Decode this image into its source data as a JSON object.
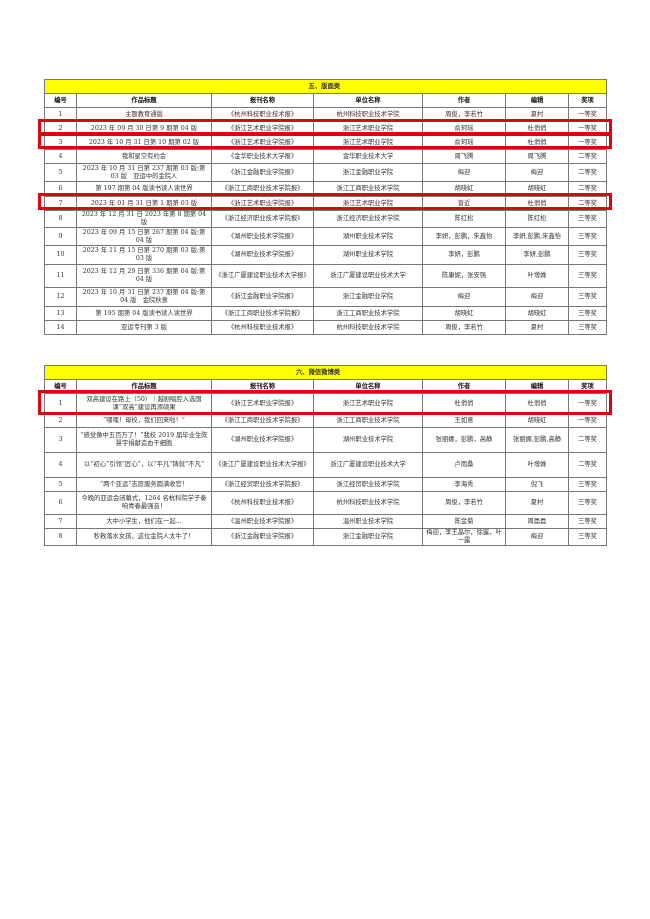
{
  "headers": [
    "编号",
    "作品标题",
    "报刊名称",
    "单位名称",
    "作者",
    "编辑",
    "奖项"
  ],
  "tables": [
    {
      "title": "五、版面类",
      "rows": [
        [
          "1",
          "主题教育通版",
          "《杭州科技职业技术报》",
          "杭州科技职业技术学院",
          "周俊，李若竹",
          "夏村",
          "一等奖"
        ],
        [
          "2",
          "2023 年 09 月 30 日第 9 期第 04 版",
          "《浙江艺术职业学院报》",
          "浙江艺术职业学院",
          "俞珂瑶",
          "杜俏俏",
          "一等奖"
        ],
        [
          "3",
          "2023 年 10 月 31 日第 10 期第 02 版",
          "《浙江艺术职业学院报》",
          "浙江艺术职业学院",
          "俞珂瑶",
          "杜俏俏",
          "一等奖"
        ],
        [
          "4",
          "我和星空有约会",
          "《金华职业技术大学报》",
          "金华职业技术大学",
          "周飞腾",
          "周飞腾",
          "二等奖"
        ],
        [
          "5",
          "2023 年 10 月 31 日第 237 期第 03 版:第 03 版　亚运中的金院人",
          "《浙江金融职业学院报》",
          "浙江金融职业学院",
          "梅迎",
          "梅迎",
          "二等奖"
        ],
        [
          "6",
          "第 197 期第 04 版读书读人读世界",
          "《浙江工商职业技术学院报》",
          "浙江工商职业技术学院",
          "胡晓虹",
          "胡晓虹",
          "二等奖"
        ],
        [
          "7",
          "2023 年 01 月 31 日第 1 期第 03 版",
          "《浙江艺术职业学院报》",
          "浙江艺术职业学院",
          "曾近",
          "杜俏俏",
          "二等奖"
        ],
        [
          "8",
          "2023 年 12 月 31 日 2023 年第 8 期第 04 版",
          "《浙江经济职业技术学院报》",
          "浙江经济职业技术学院",
          "陈红松",
          "陈红松",
          "三等奖"
        ],
        [
          "9",
          "2023 年 09 月 15 日第 267 期第 04 版:第 04 版",
          "《湖州职业技术学院报》",
          "湖州职业技术学院",
          "李妍，彭鹏，朱鑫怡",
          "李妍,彭鹏,朱鑫怡",
          "三等奖"
        ],
        [
          "10",
          "2023 年 11 月 15 日第 270 期第 03 版:第 03 版",
          "《湖州职业技术学院报》",
          "湖州职业技术学院",
          "李妍，彭鹏",
          "李妍,彭鹏",
          "三等奖"
        ],
        [
          "11",
          "2023 年 12 月 29 日第 336 期第 04 版:第 04 版",
          "《浙江广厦建设职业技术大学报》",
          "浙江广厦建设职业技术大学",
          "陈康妮，张安强",
          "叶增姝",
          "三等奖"
        ],
        [
          "12",
          "2023 年 10 月 31 日第 237 期第 04 版:第 04 版　金院秋意",
          "《浙江金融职业学院报》",
          "浙江金融职业学院",
          "梅迎",
          "梅迎",
          "三等奖"
        ],
        [
          "13",
          "第 195 期第 04 版读书读人读世界",
          "《浙江工商职业技术学院报》",
          "浙江工商职业技术学院",
          "胡晓虹",
          "胡晓虹",
          "三等奖"
        ],
        [
          "14",
          "亚运专刊第 3 版",
          "《杭州科技职业技术报》",
          "杭州科技职业技术学院",
          "周俊，李若竹",
          "夏村",
          "三等奖"
        ]
      ]
    },
    {
      "title": "六、微信微博类",
      "rows": [
        [
          "1",
          "双高建设在路上（50）｜越剧唱腔入选国课“双高”建设再添硕果",
          "《浙江艺术职业学院报》",
          "浙江艺术职业学院",
          "杜俏俏",
          "杜俏俏",
          "一等奖"
        ],
        [
          "2",
          "“嘿嘿！母校，我们回来啦！”",
          "《浙江工商职业技术学院报》",
          "浙江工商职业技术学院",
          "王如意",
          "胡晓虹",
          "一等奖"
        ],
        [
          "3",
          "“感觉像中五百万了！”我校 2019 届毕业生陈慧宇捐献造血干细胞",
          "《湖州职业技术学院报》",
          "湖州职业技术学院",
          "张丽娜，彭鹏，高静",
          "张丽娜,彭鹏,高静",
          "二等奖"
        ],
        [
          "4",
          "以“初心”引领“匠心”，以“平凡”铸就“不凡”",
          "《浙江广厦建设职业技术大学报》",
          "浙江广厦建设职业技术大学",
          "卢雨桑",
          "叶增姝",
          "二等奖"
        ],
        [
          "5",
          "“两个亚运”志愿服务圆满收官！",
          "《浙江经贸职业技术学院报》",
          "浙江经贸职业技术学院",
          "李海秀",
          "倪飞",
          "三等奖"
        ],
        [
          "6",
          "今晚的亚运会闭幕式，1264 名杭科院学子奏响青春最强音！",
          "《杭州科技职业技术报》",
          "杭州科技职业技术学院",
          "周俊，李若竹",
          "夏村",
          "三等奖"
        ],
        [
          "7",
          "大中小学生，他们在一起...",
          "《温州职业技术学院报》",
          "温州职业技术学院",
          "陈金菊",
          "周磊磊",
          "三等奖"
        ],
        [
          "8",
          "秒救落水女孩，这位金院人太牛了！",
          "《浙江金融职业学院报》",
          "浙江金融职业学院",
          "梅迎，李王晶尔，徐露，叶一露",
          "梅迎",
          "三等奖"
        ]
      ]
    }
  ]
}
